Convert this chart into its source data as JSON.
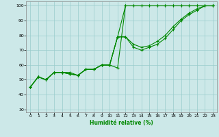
{
  "xlabel": "Humidité relative (%)",
  "ylabel": "",
  "xlim": [
    -0.5,
    23.5
  ],
  "ylim": [
    28,
    103
  ],
  "yticks": [
    30,
    40,
    50,
    60,
    70,
    80,
    90,
    100
  ],
  "xticks": [
    0,
    1,
    2,
    3,
    4,
    5,
    6,
    7,
    8,
    9,
    10,
    11,
    12,
    13,
    14,
    15,
    16,
    17,
    18,
    19,
    20,
    21,
    22,
    23
  ],
  "background_color": "#cce8e8",
  "grid_color": "#99cccc",
  "line_color": "#008800",
  "series": [
    [
      45,
      52,
      50,
      55,
      55,
      55,
      53,
      57,
      57,
      60,
      60,
      58,
      100,
      100,
      100,
      100,
      100,
      100,
      100,
      100,
      100,
      100,
      100,
      100
    ],
    [
      45,
      52,
      50,
      55,
      55,
      54,
      53,
      57,
      57,
      60,
      60,
      79,
      100,
      100,
      100,
      100,
      100,
      100,
      100,
      100,
      100,
      100,
      100,
      100
    ],
    [
      45,
      52,
      50,
      55,
      55,
      54,
      53,
      57,
      57,
      60,
      60,
      79,
      79,
      72,
      70,
      72,
      74,
      78,
      84,
      90,
      94,
      97,
      100,
      100
    ],
    [
      45,
      52,
      50,
      55,
      55,
      54,
      53,
      57,
      57,
      60,
      60,
      79,
      79,
      74,
      72,
      73,
      76,
      80,
      86,
      91,
      95,
      98,
      100,
      100
    ]
  ]
}
